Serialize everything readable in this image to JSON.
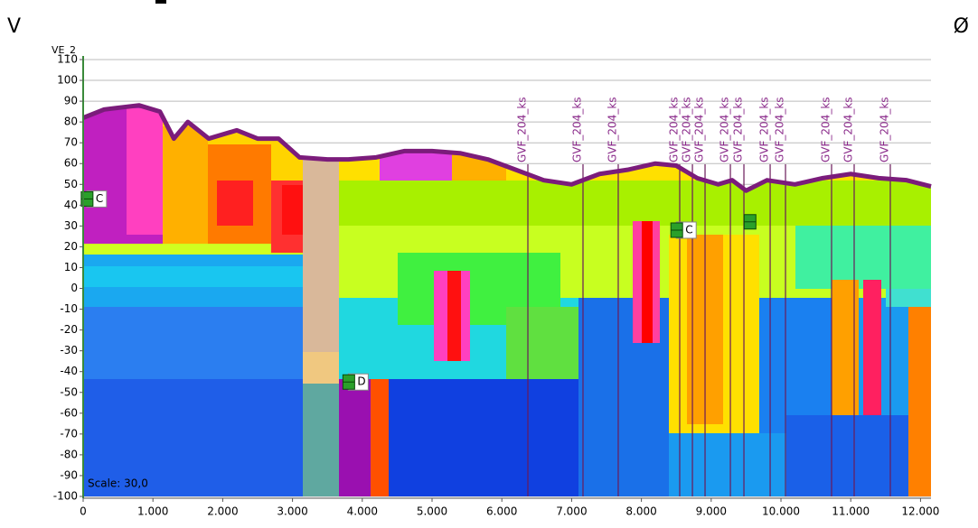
{
  "header": {
    "left": "V",
    "right": "Ø"
  },
  "chart_data": {
    "type": "line",
    "axis_title": "VE_2",
    "scale_note": "Scale: 30,0",
    "xlim": [
      0,
      12150
    ],
    "ylim": [
      -100,
      110
    ],
    "xticks": [
      0,
      {
        "value": 1000,
        "label": "1.000"
      },
      {
        "value": 2000,
        "label": "2.000"
      },
      {
        "value": 3000,
        "label": "3.000"
      },
      {
        "value": 4000,
        "label": "4.000"
      },
      {
        "value": 5000,
        "label": "5.000"
      },
      {
        "value": 6000,
        "label": "6.000"
      },
      {
        "value": 7000,
        "label": "7.000"
      },
      {
        "value": 8000,
        "label": "8.000"
      },
      {
        "value": 9000,
        "label": "9.000"
      },
      {
        "value": 10000,
        "label": "10.000"
      },
      {
        "value": 11000,
        "label": "11.000"
      },
      {
        "value": 12000,
        "label": "12.000"
      }
    ],
    "yticks": [
      110,
      100,
      90,
      80,
      70,
      60,
      50,
      40,
      30,
      20,
      10,
      0,
      -10,
      -20,
      -30,
      -40,
      -50,
      -60,
      -70,
      -80,
      -90,
      -100
    ],
    "grid": true,
    "terrain": {
      "color": "#7b1c7b",
      "x": [
        0,
        300,
        800,
        1100,
        1300,
        1500,
        1800,
        2200,
        2500,
        2800,
        3100,
        3500,
        3800,
        4200,
        4600,
        5000,
        5400,
        5800,
        6200,
        6600,
        7000,
        7400,
        7800,
        8200,
        8500,
        8800,
        9100,
        9300,
        9500,
        9800,
        10200,
        10600,
        11000,
        11400,
        11800,
        12150
      ],
      "values": [
        82,
        86,
        88,
        85,
        72,
        80,
        72,
        76,
        72,
        72,
        63,
        62,
        62,
        63,
        66,
        66,
        65,
        62,
        57,
        52,
        50,
        55,
        57,
        60,
        59,
        53,
        50,
        52,
        47,
        52,
        50,
        53,
        55,
        53,
        52,
        49
      ]
    },
    "boreholes": [
      {
        "label": "GVF_204_ks",
        "x": 6373
      },
      {
        "label": "GVF_204_ks",
        "x": 7163
      },
      {
        "label": "GVF_204_ks",
        "x": 7668
      },
      {
        "label": "GVF_204_ks",
        "x": 8549
      },
      {
        "label": "GVF_204_ks",
        "x": 8731
      },
      {
        "label": "GVF_204_ks",
        "x": 8912
      },
      {
        "label": "GVF_204_ks",
        "x": 9275
      },
      {
        "label": "GVF_204_ks",
        "x": 9469
      },
      {
        "label": "GVF_204_ks",
        "x": 9845
      },
      {
        "label": "GVF_204_ks",
        "x": 10065
      },
      {
        "label": "GVF_204_ks",
        "x": 10725
      },
      {
        "label": "GVF_204_ks",
        "x": 11049
      },
      {
        "label": "GVF_204_ks",
        "x": 11567
      }
    ],
    "markers": [
      {
        "label": "C",
        "x": 50,
        "y": 43
      },
      {
        "label": "C",
        "x": 8500,
        "y": 28
      },
      {
        "label": "D",
        "x": 3800,
        "y": -45
      },
      {
        "x": 9550,
        "y": 32
      }
    ]
  }
}
